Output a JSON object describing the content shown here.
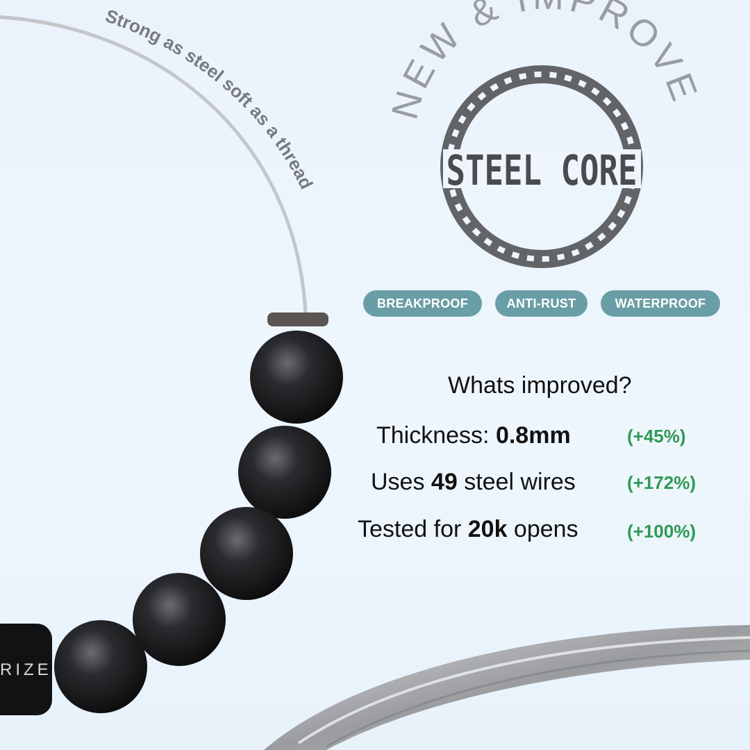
{
  "wire_caption": "Strong as steel soft as a thread",
  "badge": {
    "arc_text": "NEW & IMPROVED",
    "logo_text": "STEEL CORE"
  },
  "clasp_text": "RIZE",
  "tags": [
    "BREAKPROOF",
    "ANTI-RUST",
    "WATERPROOF"
  ],
  "improvements": {
    "heading": "Whats improved?",
    "rows": [
      {
        "pre": "Thickness: ",
        "bold": "0.8mm",
        "post": "",
        "change": "(+45%)"
      },
      {
        "pre": "Uses ",
        "bold": "49",
        "post": " steel wires",
        "change": "(+172%)"
      },
      {
        "pre": "Tested for ",
        "bold": "20k",
        "post": " opens",
        "change": "(+100%)"
      }
    ]
  },
  "colors": {
    "tag_bg": "#6a9ea6",
    "positive": "#2f9a55",
    "badge_gray": "#626467"
  }
}
